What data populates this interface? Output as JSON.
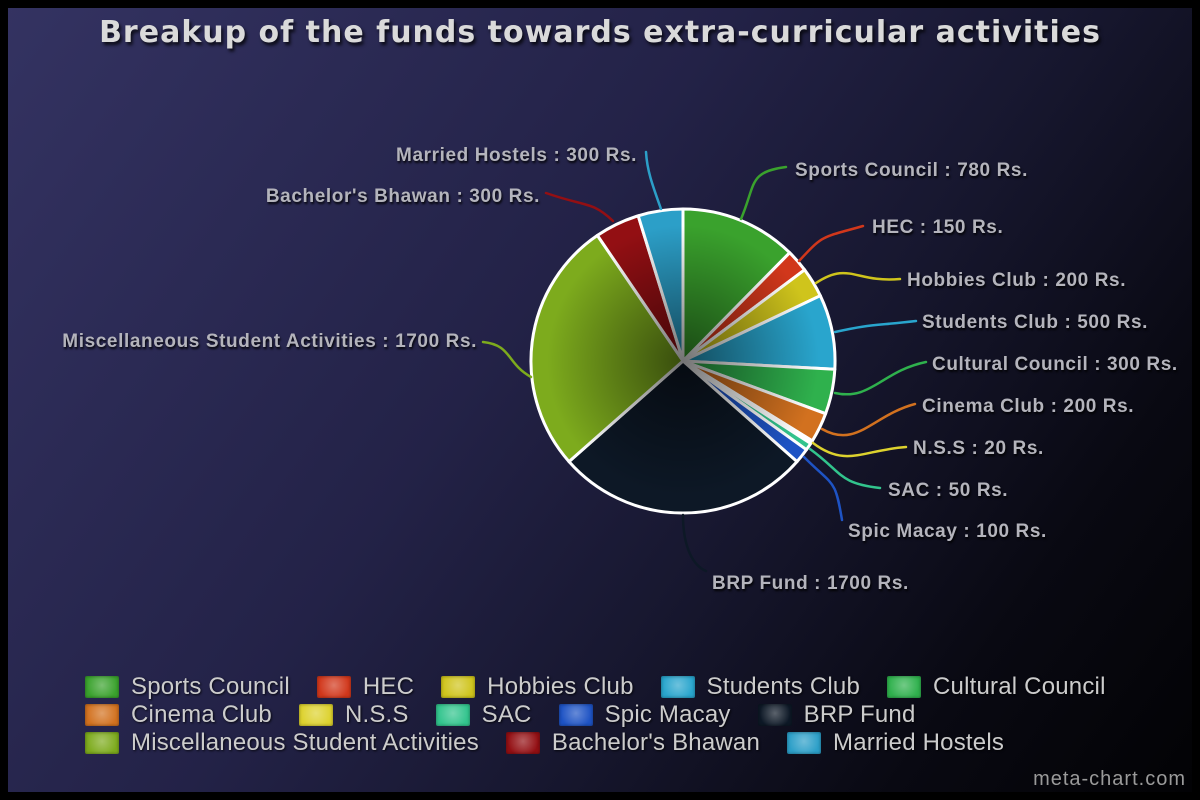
{
  "title": "Breakup of the funds towards extra-curricular activities",
  "watermark": "meta-chart.com",
  "chart_data": {
    "type": "pie",
    "title": "Breakup of the funds towards extra-curricular activities",
    "unit": "Rs.",
    "total": 6300,
    "legend_position": "bottom",
    "slice_border_color": "#ffffff",
    "background": "navy-to-black diagonal gradient",
    "slices": [
      {
        "name": "Sports Council",
        "value": 780,
        "display": "Sports Council : 780 Rs.",
        "color": "#3aa22d"
      },
      {
        "name": "HEC",
        "value": 150,
        "display": "HEC : 150 Rs.",
        "color": "#d1371b"
      },
      {
        "name": "Hobbies Club",
        "value": 200,
        "display": "Hobbies Club : 200 Rs.",
        "color": "#cfc41c"
      },
      {
        "name": "Students Club",
        "value": 500,
        "display": "Students Club : 500 Rs.",
        "color": "#29a5cd"
      },
      {
        "name": "Cultural Council",
        "value": 300,
        "display": "Cultural Council : 300 Rs.",
        "color": "#2fb14d"
      },
      {
        "name": "Cinema Club",
        "value": 200,
        "display": "Cinema Club : 200 Rs.",
        "color": "#d2711f"
      },
      {
        "name": "N.S.S",
        "value": 20,
        "display": "N.S.S : 20 Rs.",
        "color": "#ddd22e"
      },
      {
        "name": "SAC",
        "value": 50,
        "display": "SAC : 50 Rs.",
        "color": "#32c48d"
      },
      {
        "name": "Spic Macay",
        "value": 100,
        "display": "Spic Macay : 100 Rs.",
        "color": "#1e53c4"
      },
      {
        "name": "BRP Fund",
        "value": 1700,
        "display": "BRP Fund : 1700 Rs.",
        "color": "#0d1826"
      },
      {
        "name": "Miscellaneous Student Activities",
        "value": 1700,
        "display": "Miscellaneous Student Activities : 1700 Rs.",
        "color": "#7dab1d"
      },
      {
        "name": "Bachelor's Bhawan",
        "value": 300,
        "display": "Bachelor's Bhawan : 300 Rs.",
        "color": "#930f13"
      },
      {
        "name": "Married Hostels",
        "value": 300,
        "display": "Married Hostels : 300 Rs.",
        "color": "#2c9fc8"
      }
    ]
  }
}
